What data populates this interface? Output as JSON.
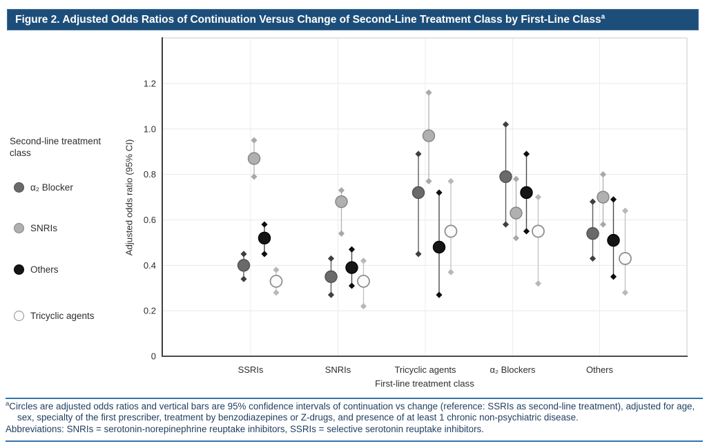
{
  "figure": {
    "title": "Figure 2. Adjusted Odds Ratios of Continuation Versus Change of Second-Line Treatment Class by First-Line Class",
    "title_superscript": "a",
    "title_bar_color": "#1d4e79",
    "rule_color": "#3273ad"
  },
  "legend": {
    "header": "Second-line treatment class",
    "position": "left"
  },
  "chart_data": {
    "type": "scatter",
    "subtype": "dot-plot-with-95ci-error-bars",
    "title": "",
    "xlabel": "First-line treatment class",
    "ylabel": "Adjusted odds ratio (95% CI)",
    "ylim": [
      0,
      1.4
    ],
    "yticks": [
      "0",
      "0.2",
      "0.4",
      "0.6",
      "0.8",
      "1.0",
      "1.2"
    ],
    "grid": "horizontal gridlines at each y tick; one light vertical gridline per category; legend at left",
    "categories": [
      "SSRIs",
      "SNRIs",
      "Tricyclic agents",
      "α₂ Blockers",
      "Others"
    ],
    "series": [
      {
        "id": "a2-blocker",
        "name": "α₂ Blocker",
        "open_marker": false,
        "fill": "#6a6a6a",
        "edge": "#4f4f4f",
        "ci_color": "#5c5c5c",
        "cap_color": "#3f3f3f",
        "or": [
          0.4,
          0.35,
          0.72,
          0.79,
          0.54
        ],
        "ci_low": [
          0.34,
          0.27,
          0.45,
          0.58,
          0.43
        ],
        "ci_high": [
          0.45,
          0.43,
          0.89,
          1.02,
          0.68
        ]
      },
      {
        "id": "snris",
        "name": "SNRIs",
        "open_marker": false,
        "fill": "#b0b0b0",
        "edge": "#828282",
        "ci_color": "#b6b6b6",
        "cap_color": "#a8a8a8",
        "or": [
          0.87,
          0.68,
          0.97,
          0.63,
          0.7
        ],
        "ci_low": [
          0.79,
          0.54,
          0.77,
          0.52,
          0.58
        ],
        "ci_high": [
          0.95,
          0.73,
          1.16,
          0.78,
          0.8
        ]
      },
      {
        "id": "others",
        "name": "Others",
        "open_marker": false,
        "fill": "#151515",
        "edge": "#000000",
        "ci_color": "#4a4a4a",
        "cap_color": "#0d0d0d",
        "or": [
          0.52,
          0.39,
          0.48,
          0.72,
          0.51
        ],
        "ci_low": [
          0.45,
          0.31,
          0.27,
          0.55,
          0.35
        ],
        "ci_high": [
          0.58,
          0.47,
          0.72,
          0.89,
          0.69
        ]
      },
      {
        "id": "tricyclic-agents",
        "name": "Tricyclic agents",
        "open_marker": true,
        "fill": "#fbfbfb",
        "edge": "#8f8f8f",
        "ci_color": "#c4c4c4",
        "cap_color": "#b8b8b8",
        "or": [
          0.33,
          0.33,
          0.55,
          0.55,
          0.43
        ],
        "ci_low": [
          0.28,
          0.22,
          0.37,
          0.32,
          0.28
        ],
        "ci_high": [
          0.38,
          0.42,
          0.77,
          0.7,
          0.64
        ]
      }
    ]
  },
  "footnote": {
    "superscript": "a",
    "body": "Circles are adjusted odds ratios and vertical bars are 95% confidence intervals of continuation vs change (reference: SSRIs as second-line treatment), adjusted for age, sex, specialty of the first prescriber, treatment by benzodiazepines or Z-drugs, and presence of at least 1 chronic non-psychiatric disease.",
    "abbreviations": "Abbreviations: SNRIs = serotonin-norepinephrine reuptake inhibitors, SSRIs = selective serotonin reuptake inhibitors."
  }
}
